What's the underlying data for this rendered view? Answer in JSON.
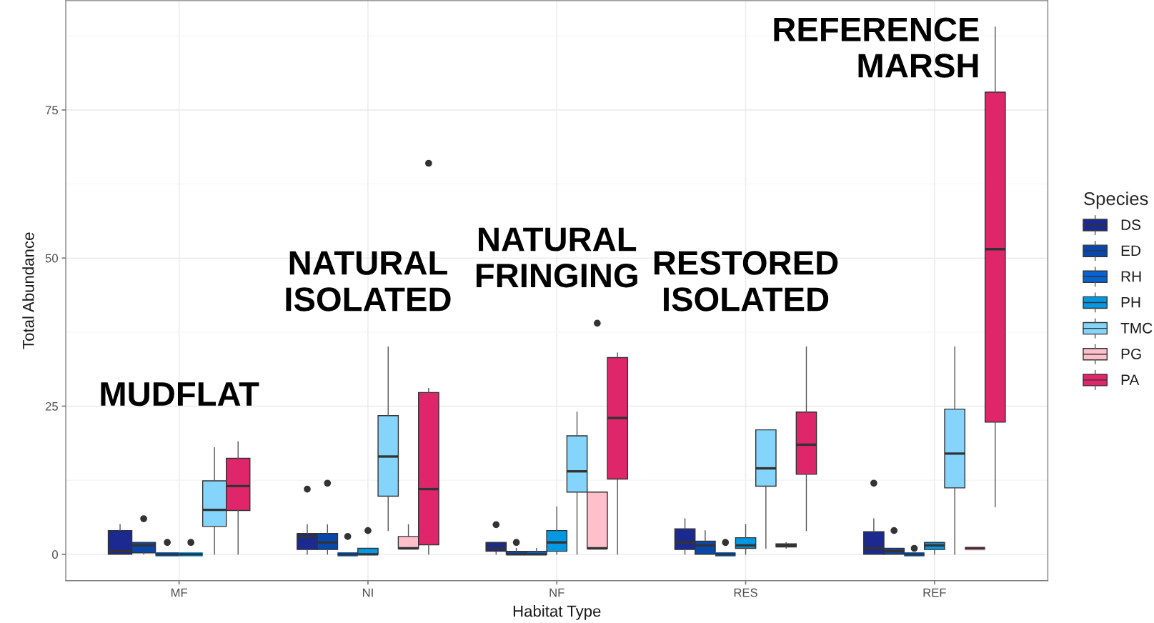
{
  "chart_data": {
    "type": "box",
    "xlabel": "Habitat Type",
    "ylabel": "Total Abundance",
    "legend_title": "Species",
    "categories": [
      "MF",
      "NI",
      "NF",
      "RES",
      "REF"
    ],
    "ylim": [
      -4.45,
      93.45
    ],
    "yticks": [
      0,
      25,
      50,
      75
    ],
    "grid": true,
    "legend": "right",
    "annotations": [
      "MUDFLAT",
      "NATURAL\nISOLATED",
      "NATURAL\nFRINGING",
      "RESTORED\nISOLATED",
      "REFERENCE\nMARSH"
    ],
    "series": [
      {
        "name": "DS",
        "color": "#1c2a8f",
        "boxes": [
          {
            "low": 0,
            "q1": 0,
            "median": 0.5,
            "q3": 4,
            "high": 5
          },
          {
            "low": 0,
            "q1": 0.8,
            "median": 3,
            "q3": 3.5,
            "high": 5,
            "outliers": [
              11
            ]
          },
          {
            "low": 0,
            "q1": 0.5,
            "median": 1,
            "q3": 2,
            "high": 2,
            "outliers": [
              5
            ]
          },
          {
            "low": 0,
            "q1": 0.8,
            "median": 2,
            "q3": 4.3,
            "high": 6
          },
          {
            "low": 0,
            "q1": 0,
            "median": 1,
            "q3": 3.8,
            "high": 6,
            "outliers": [
              12
            ]
          }
        ]
      },
      {
        "name": "ED",
        "color": "#0a47ab",
        "boxes": [
          {
            "low": 0,
            "q1": 0.25,
            "median": 1.5,
            "q3": 2,
            "high": 2,
            "outliers": [
              6
            ]
          },
          {
            "low": 0,
            "q1": 0.8,
            "median": 2,
            "q3": 3.5,
            "high": 5,
            "outliers": [
              12
            ]
          },
          {
            "low": 0,
            "q1": 0,
            "median": 0,
            "q3": 0.5,
            "high": 1,
            "outliers": [
              2
            ]
          },
          {
            "low": 0,
            "q1": 0,
            "median": 1.5,
            "q3": 2.2,
            "high": 4
          },
          {
            "low": 0,
            "q1": 0,
            "median": 0.5,
            "q3": 1,
            "high": 1,
            "outliers": [
              4
            ]
          }
        ]
      },
      {
        "name": "RH",
        "color": "#0862cf",
        "boxes": [
          {
            "low": 0,
            "q1": 0,
            "median": 0,
            "q3": 0,
            "high": 0,
            "outliers": [
              2
            ]
          },
          {
            "low": 0,
            "q1": 0,
            "median": 0,
            "q3": 0,
            "high": 0,
            "outliers": [
              3
            ]
          },
          {
            "low": 0,
            "q1": 0,
            "median": 0,
            "q3": 0.5,
            "high": 1
          },
          {
            "low": 0,
            "q1": 0,
            "median": 0,
            "q3": 0,
            "high": 0,
            "outliers": [
              2
            ]
          },
          {
            "low": 0,
            "q1": 0,
            "median": 0,
            "q3": 0,
            "high": 0,
            "outliers": [
              1
            ]
          }
        ]
      },
      {
        "name": "PH",
        "color": "#0399e2",
        "boxes": [
          {
            "low": 0,
            "q1": 0,
            "median": 0,
            "q3": 0,
            "high": 0,
            "outliers": [
              2
            ]
          },
          {
            "low": 0,
            "q1": 0,
            "median": 0,
            "q3": 1,
            "high": 1,
            "outliers": [
              4
            ]
          },
          {
            "low": 0,
            "q1": 0.5,
            "median": 2,
            "q3": 4,
            "high": 8
          },
          {
            "low": 0,
            "q1": 1,
            "median": 1.5,
            "q3": 2.8,
            "high": 5
          },
          {
            "low": 0,
            "q1": 0.8,
            "median": 1.5,
            "q3": 2,
            "high": 2
          }
        ]
      },
      {
        "name": "TMC",
        "color": "#84d4fb",
        "boxes": [
          {
            "low": 0,
            "q1": 4.7,
            "median": 7.5,
            "q3": 12.4,
            "high": 18
          },
          {
            "low": 4,
            "q1": 9.8,
            "median": 16.5,
            "q3": 23.4,
            "high": 35
          },
          {
            "low": 0,
            "q1": 10.5,
            "median": 14,
            "q3": 20,
            "high": 24
          },
          {
            "low": 1,
            "q1": 11.5,
            "median": 14.5,
            "q3": 21,
            "high": 21
          },
          {
            "low": 0,
            "q1": 11.2,
            "median": 17,
            "q3": 24.5,
            "high": 35
          }
        ]
      },
      {
        "name": "PG",
        "color": "#ffc0cb",
        "boxes": [
          null,
          {
            "low": 1,
            "q1": 1,
            "median": 1,
            "q3": 3,
            "high": 5
          },
          {
            "low": 1,
            "q1": 1,
            "median": 1,
            "q3": 10.5,
            "high": 10.5,
            "outliers": [
              39
            ]
          },
          {
            "low": 1,
            "q1": 1.25,
            "median": 1.5,
            "q3": 1.75,
            "high": 2
          },
          {
            "low": 1,
            "q1": 1,
            "median": 1,
            "q3": 1,
            "high": 1
          }
        ]
      },
      {
        "name": "PA",
        "color": "#e0266b",
        "boxes": [
          {
            "low": 0,
            "q1": 7.4,
            "median": 11.5,
            "q3": 16.2,
            "high": 19
          },
          {
            "low": 0,
            "q1": 1.6,
            "median": 11,
            "q3": 27.3,
            "high": 28,
            "outliers": [
              66
            ]
          },
          {
            "low": 0,
            "q1": 12.7,
            "median": 23,
            "q3": 33.2,
            "high": 34
          },
          {
            "low": 4,
            "q1": 13.5,
            "median": 18.5,
            "q3": 24,
            "high": 35
          },
          {
            "low": 8,
            "q1": 22.3,
            "median": 51.5,
            "q3": 78,
            "high": 89
          }
        ]
      }
    ]
  }
}
